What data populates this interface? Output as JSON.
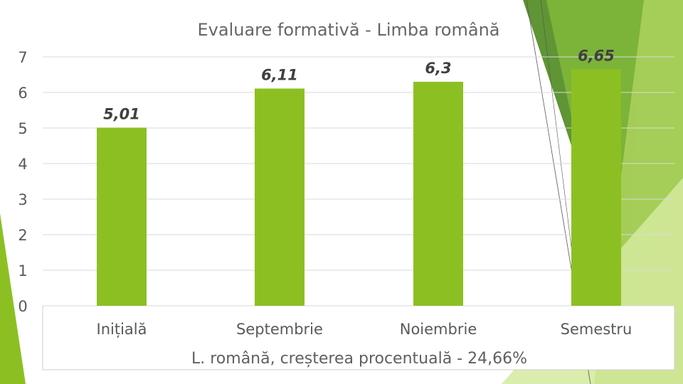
{
  "slide": {
    "accent_colors": {
      "bar": "#8cc022",
      "dark_green": "#4e8a1e",
      "mid_green": "#7fb63a",
      "light_green": "#a6cf58",
      "pale_green": "#d4ea9e"
    }
  },
  "chart_data": {
    "type": "bar",
    "title": "Evaluare formativă  - Limba română",
    "categories": [
      "Inițială",
      "Septembrie",
      "Noiembrie",
      "Semestru"
    ],
    "values": [
      5.01,
      6.11,
      6.3,
      6.65
    ],
    "data_labels": [
      "5,01",
      "6,11",
      "6,3",
      "6,65"
    ],
    "y_ticks": [
      "0",
      "1",
      "2",
      "3",
      "4",
      "5",
      "6",
      "7"
    ],
    "ylim": [
      0,
      7
    ],
    "grid": true,
    "legend": "none",
    "footer": "L. română, creșterea procentuală - 24,66%"
  }
}
